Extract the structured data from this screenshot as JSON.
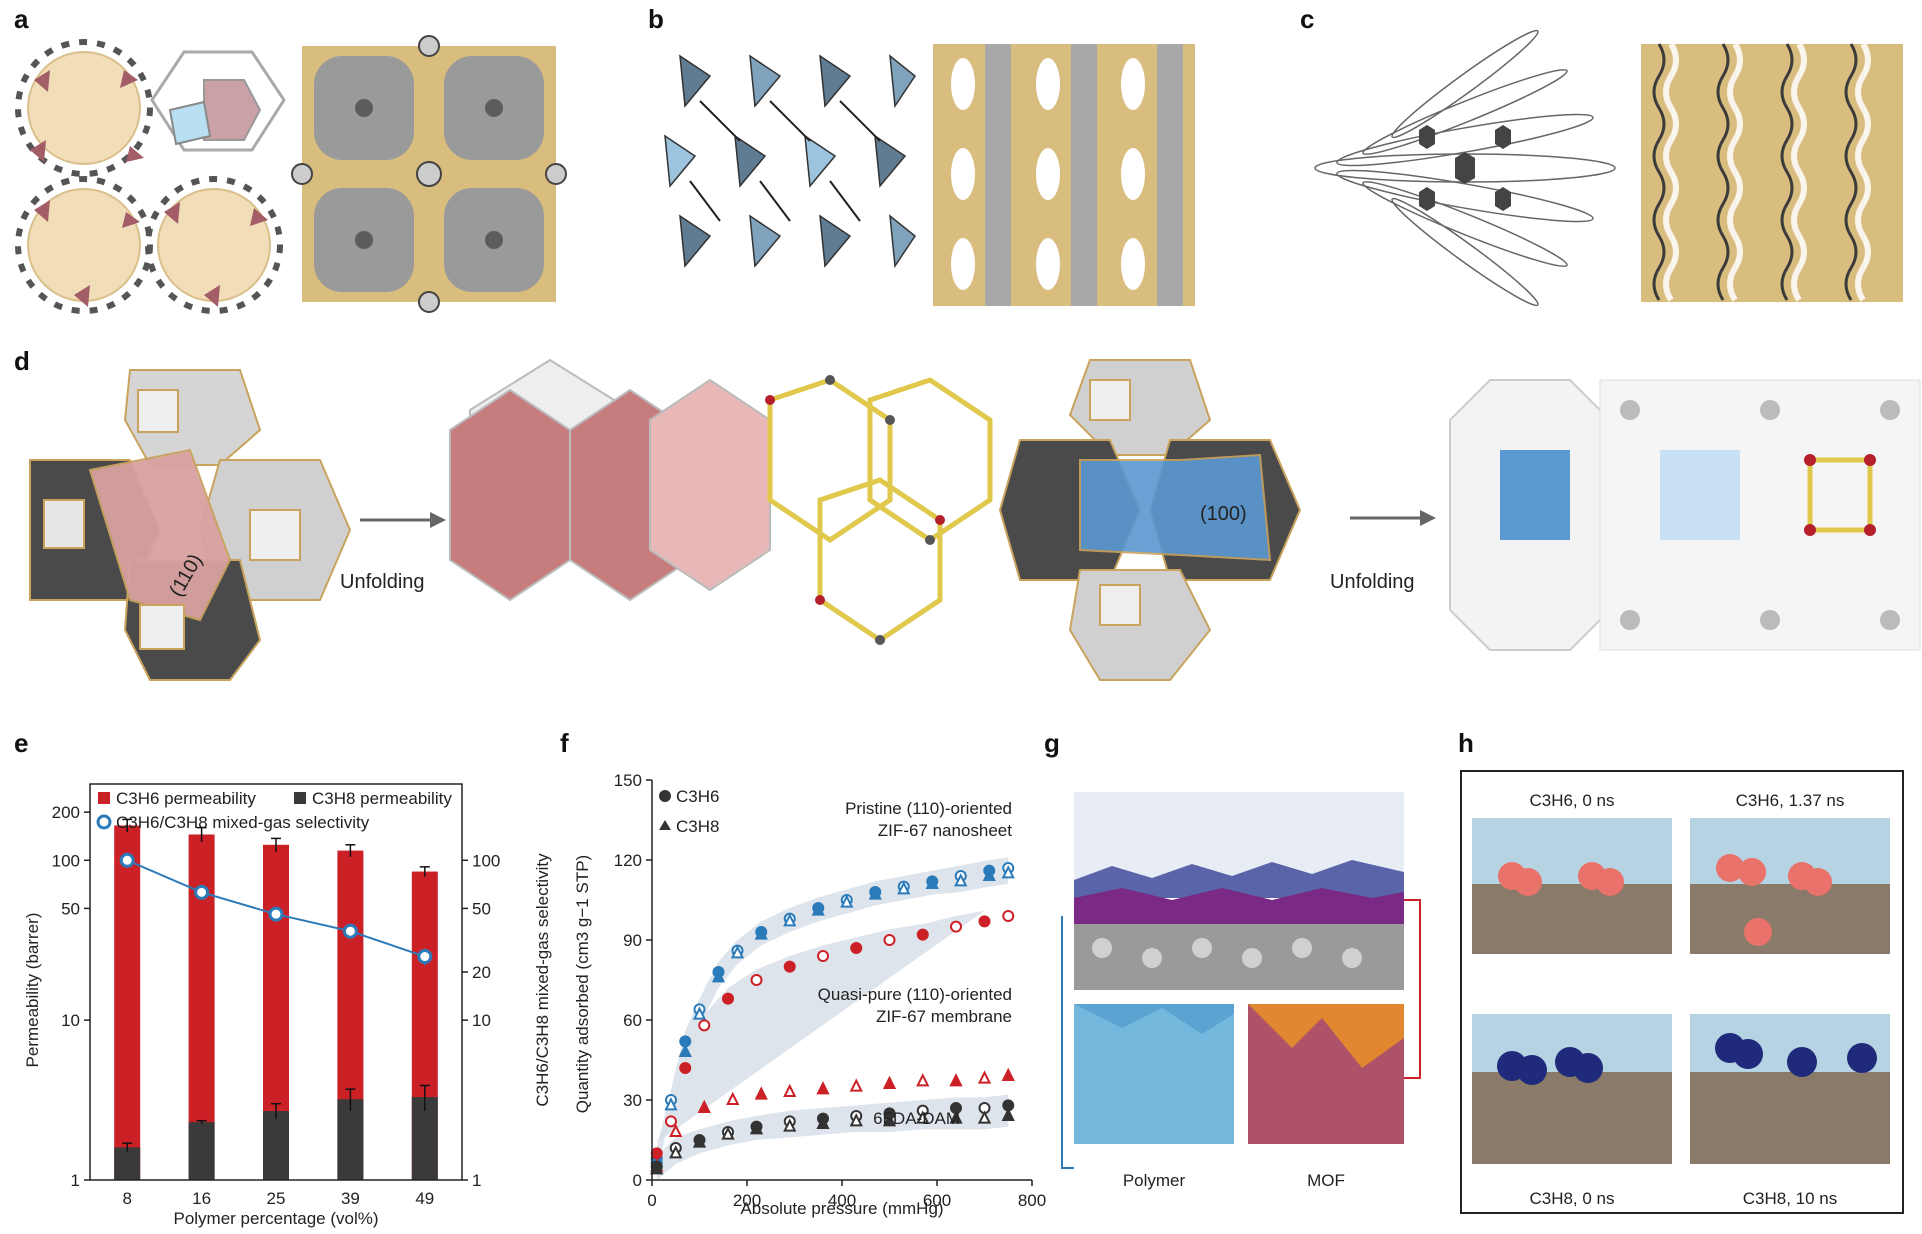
{
  "panels": {
    "a": "a",
    "b": "b",
    "c": "c",
    "d": "d",
    "e": "e",
    "f": "f",
    "g": "g",
    "h": "h"
  },
  "d": {
    "left_facet": "(110)",
    "right_facet": "(100)",
    "arrow_label": "Unfolding"
  },
  "colors": {
    "tan": "#d9bd7f",
    "gray_surface": "#8e8e8e",
    "red_bar": "#cc2027",
    "dark_bar": "#3a3a3a",
    "blue_line": "#2b7bba",
    "band": "#d6dde6",
    "pink_facet": "#c77d7d",
    "blue_facet": "#5c99d2"
  },
  "e": {
    "legend": {
      "c3h6": "C3H6 permeability",
      "c3h8": "C3H8 permeability",
      "sel": "C3H6/C3H8 mixed-gas selectivity"
    },
    "ylabel_left": "Permeability (barrer)",
    "ylabel_right": "C3H6/C3H8 mixed-gas selectivity",
    "xlabel": "Polymer percentage (vol%)",
    "left_ticks": [
      "1",
      "10",
      "50",
      "100",
      "200"
    ],
    "right_ticks": [
      "1",
      "10",
      "20",
      "50",
      "100"
    ],
    "x_ticks": [
      "8",
      "16",
      "25",
      "39",
      "49"
    ]
  },
  "f": {
    "legend": {
      "c3h6": "C3H6",
      "c3h8": "C3H8"
    },
    "annotations": {
      "pristine_1": "Pristine (110)-oriented",
      "pristine_2": "ZIF-67 nanosheet",
      "quasi_1": "Quasi-pure (110)-oriented",
      "quasi_2": "ZIF-67 membrane",
      "polymer": "6FDA-DAM"
    },
    "ylabel": "Quantity adsorbed (cm3 g−1 STP)",
    "xlabel": "Absolute pressure (mmHg)",
    "y_ticks": [
      "0",
      "30",
      "60",
      "90",
      "120",
      "150"
    ],
    "x_ticks": [
      "0",
      "200",
      "400",
      "600",
      "800"
    ]
  },
  "g": {
    "polymer_label": "Polymer",
    "mof_label": "MOF"
  },
  "h": {
    "tl": "C3H6, 0 ns",
    "tr": "C3H6, 1.37 ns",
    "bl": "C3H8, 0 ns",
    "br": "C3H8, 10 ns"
  },
  "chart_data": [
    {
      "type": "bar",
      "panel": "e",
      "categories": [
        "8",
        "16",
        "25",
        "39",
        "49"
      ],
      "xlabel": "Polymer percentage (vol%)",
      "ylabel": "Permeability (barrer)",
      "y_scale": "log",
      "ylim": [
        1,
        300
      ],
      "series": [
        {
          "name": "C3H6 permeability",
          "values": [
            165,
            145,
            125,
            115,
            85
          ],
          "errors": [
            15,
            15,
            12,
            10,
            6
          ]
        },
        {
          "name": "C3H8 permeability",
          "values": [
            1.6,
            2.3,
            2.7,
            3.2,
            3.3
          ],
          "errors": [
            0.1,
            0.05,
            0.3,
            0.5,
            0.6
          ]
        },
        {
          "name": "C3H6/C3H8 mixed-gas selectivity",
          "axis": "right",
          "values": [
            100,
            63,
            46,
            36,
            25
          ],
          "errors": [
            5,
            3,
            2,
            3,
            3
          ]
        }
      ],
      "right_ylim": [
        1,
        300
      ],
      "right_y_scale": "log"
    },
    {
      "type": "scatter",
      "panel": "f",
      "xlabel": "Absolute pressure (mmHg)",
      "ylabel": "Quantity adsorbed (cm3 g−1 STP)",
      "xlim": [
        0,
        800
      ],
      "ylim": [
        0,
        150
      ],
      "series": [
        {
          "name": "Pristine (110)-oriented ZIF-67 nanosheet, C3H6",
          "marker": "circle",
          "color": "blue",
          "x": [
            10,
            40,
            70,
            100,
            140,
            180,
            230,
            290,
            350,
            410,
            470,
            530,
            590,
            650,
            710,
            750
          ],
          "y": [
            8,
            30,
            52,
            64,
            78,
            86,
            93,
            98,
            102,
            105,
            108,
            110,
            112,
            114,
            116,
            117
          ]
        },
        {
          "name": "Pristine (110)-oriented ZIF-67 nanosheet, C3H8",
          "marker": "triangle",
          "color": "blue",
          "x": [
            10,
            40,
            70,
            100,
            140,
            180,
            230,
            290,
            350,
            410,
            470,
            530,
            590,
            650,
            710,
            750
          ],
          "y": [
            8,
            28,
            48,
            62,
            76,
            85,
            92,
            97,
            101,
            104,
            107,
            109,
            111,
            112,
            114,
            115
          ]
        },
        {
          "name": "Quasi-pure (110)-oriented ZIF-67 membrane, C3H6",
          "marker": "circle",
          "color": "red",
          "x": [
            10,
            40,
            70,
            110,
            160,
            220,
            290,
            360,
            430,
            500,
            570,
            640,
            700,
            750
          ],
          "y": [
            10,
            22,
            42,
            58,
            68,
            75,
            80,
            84,
            87,
            90,
            92,
            95,
            97,
            99
          ]
        },
        {
          "name": "Quasi-pure (110)-oriented ZIF-67 membrane, C3H8",
          "marker": "triangle",
          "color": "red",
          "x": [
            10,
            50,
            110,
            170,
            230,
            290,
            360,
            430,
            500,
            570,
            640,
            700,
            750
          ],
          "y": [
            5,
            18,
            27,
            30,
            32,
            33,
            34,
            35,
            36,
            37,
            37,
            38,
            39
          ]
        },
        {
          "name": "6FDA-DAM, C3H6",
          "marker": "circle",
          "color": "black",
          "x": [
            10,
            50,
            100,
            160,
            220,
            290,
            360,
            430,
            500,
            570,
            640,
            700,
            750
          ],
          "y": [
            5,
            12,
            15,
            18,
            20,
            22,
            23,
            24,
            25,
            26,
            27,
            27,
            28
          ]
        },
        {
          "name": "6FDA-DAM, C3H8",
          "marker": "triangle",
          "color": "black",
          "x": [
            10,
            50,
            100,
            160,
            220,
            290,
            360,
            430,
            500,
            570,
            640,
            700,
            750
          ],
          "y": [
            4,
            10,
            14,
            17,
            19,
            20,
            21,
            22,
            22,
            23,
            23,
            23,
            24
          ]
        }
      ]
    }
  ]
}
